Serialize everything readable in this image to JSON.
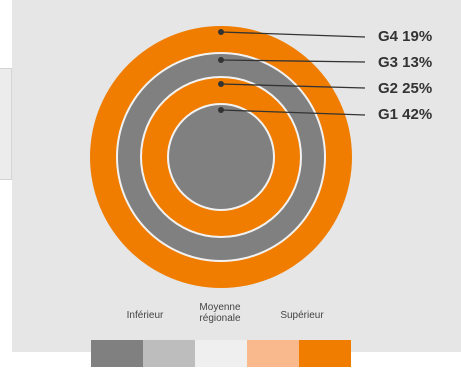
{
  "rings": [
    {
      "label": "G4 19%",
      "color": "#f07d00"
    },
    {
      "label": "G3 13%",
      "color": "#808080"
    },
    {
      "label": "G2 25%",
      "color": "#f07d00"
    },
    {
      "label": "G1 42%",
      "color": "#808080"
    }
  ],
  "legend": {
    "labels": [
      "Inférieur",
      "Moyenne régionale",
      "Supérieur"
    ],
    "swatches": [
      "#808080",
      "#bdbdbd",
      "#efefef",
      "#f9b98c",
      "#f07d00"
    ]
  },
  "colors": {
    "separator": "#f2f2f2",
    "leader": "#333333",
    "background": "#e6e6e6"
  }
}
